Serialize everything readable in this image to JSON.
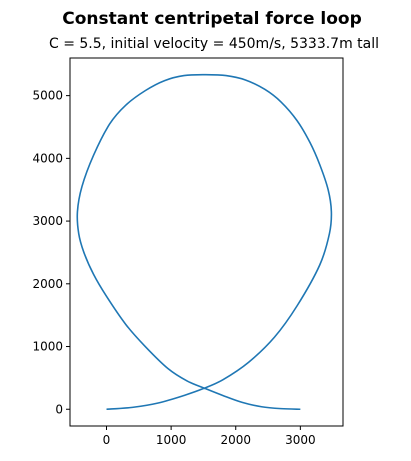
{
  "chart_data": {
    "type": "line",
    "title": "Constant centripetal force loop",
    "subtitle": "C = 5.5, initial velocity = 450m/s, 5333.7m tall",
    "xlabel": "",
    "ylabel": "",
    "xlim": [
      -565,
      3660
    ],
    "ylim": [
      -267,
      5600
    ],
    "xticks": [
      0,
      1000,
      2000,
      3000
    ],
    "yticks": [
      0,
      1000,
      2000,
      3000,
      4000,
      5000
    ],
    "grid": false,
    "series": [
      {
        "color": "#1f77b4",
        "x": [
          0,
          400,
          800,
          1200,
          1500,
          1800,
          2200,
          2600,
          2950,
          3300,
          3450,
          3480,
          3430,
          3300,
          3150,
          2950,
          2700,
          2450,
          2150,
          1850,
          1530,
          1200,
          900,
          600,
          300,
          50,
          -200,
          -380,
          -450,
          -430,
          -350,
          -200,
          0,
          300,
          600,
          950,
          1250,
          1530,
          1800,
          2100,
          2400,
          2700,
          3000
        ],
        "y": [
          0,
          30,
          100,
          220,
          330,
          470,
          750,
          1150,
          1650,
          2300,
          2800,
          3150,
          3500,
          3900,
          4250,
          4600,
          4900,
          5100,
          5250,
          5320,
          5333.7,
          5320,
          5240,
          5080,
          4850,
          4550,
          4050,
          3550,
          3150,
          2800,
          2500,
          2150,
          1800,
          1350,
          1000,
          650,
          450,
          330,
          220,
          110,
          40,
          10,
          0
        ]
      }
    ]
  }
}
